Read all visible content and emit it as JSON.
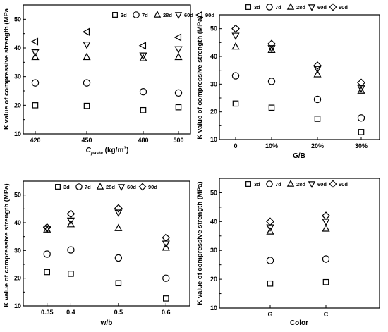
{
  "legend": {
    "entries": [
      "3d",
      "7d",
      "28d",
      "60d",
      "90d"
    ],
    "markers": [
      "square",
      "circle",
      "triangle-up",
      "triangle-down",
      "diamond-or-triangle-left"
    ]
  },
  "chart_data": [
    {
      "type": "scatter",
      "id": "paste",
      "ylabel": "K value of compressive strength (MPa",
      "xlabel_main": "C",
      "xlabel_sub": "paste",
      "xlabel_unit": " (kg/m",
      "xlabel_sup": "3",
      "xlabel_end": ")",
      "categories": [
        "420",
        "450",
        "480",
        "500"
      ],
      "ylim": [
        10,
        55
      ],
      "yticks": [
        "10",
        "20",
        "30",
        "40",
        "50"
      ],
      "series": [
        {
          "name": "3d",
          "marker": "square",
          "values": [
            20,
            19.8,
            18.3,
            19.3
          ]
        },
        {
          "name": "7d",
          "marker": "circle",
          "values": [
            27.8,
            27.8,
            24.7,
            24.3
          ]
        },
        {
          "name": "28d",
          "marker": "triangle-up",
          "values": [
            36.8,
            36.8,
            36.4,
            36.8
          ]
        },
        {
          "name": "60d",
          "marker": "triangle-down",
          "values": [
            38.5,
            41.2,
            37.4,
            39.6
          ]
        },
        {
          "name": "90d",
          "marker": "triangle-left",
          "values": [
            42.2,
            45.6,
            40.8,
            43.7
          ]
        }
      ]
    },
    {
      "type": "scatter",
      "id": "gb",
      "ylabel": "K value of compressive strength (MPa)",
      "xlabel": "G/B",
      "categories": [
        "0",
        "10%",
        "20%",
        "30%"
      ],
      "ylim": [
        10,
        55
      ],
      "yticks": [
        "10",
        "20",
        "30",
        "40",
        "50"
      ],
      "series": [
        {
          "name": "3d",
          "marker": "square",
          "values": [
            23,
            21.5,
            17.5,
            12.7
          ]
        },
        {
          "name": "7d",
          "marker": "circle",
          "values": [
            33,
            31,
            24.5,
            17.8
          ]
        },
        {
          "name": "28d",
          "marker": "triangle-up",
          "values": [
            43.5,
            42.3,
            33.5,
            27.6
          ]
        },
        {
          "name": "60d",
          "marker": "triangle-down",
          "values": [
            47.5,
            43,
            35.5,
            28.5
          ]
        },
        {
          "name": "90d",
          "marker": "diamond",
          "values": [
            50,
            44.5,
            36.7,
            30.5
          ]
        }
      ]
    },
    {
      "type": "scatter",
      "id": "wb",
      "ylabel": "K value of compressive strength (MPa)",
      "xlabel": "w/b",
      "categories": [
        "0.35",
        "0.4",
        "0.5",
        "0.6"
      ],
      "x": [
        0.35,
        0.4,
        0.5,
        0.6
      ],
      "xlim": [
        0.3,
        0.65
      ],
      "ylim": [
        10,
        55
      ],
      "yticks": [
        "10",
        "20",
        "30",
        "40",
        "50"
      ],
      "series": [
        {
          "name": "3d",
          "marker": "square",
          "values": [
            22.2,
            21.6,
            18.2,
            12.7
          ]
        },
        {
          "name": "7d",
          "marker": "circle",
          "values": [
            28.7,
            30.2,
            27.3,
            20
          ]
        },
        {
          "name": "28d",
          "marker": "triangle-up",
          "values": [
            37.5,
            39.4,
            38,
            31
          ]
        },
        {
          "name": "60d",
          "marker": "triangle-down",
          "values": [
            37.8,
            40.8,
            43.7,
            32.5
          ]
        },
        {
          "name": "90d",
          "marker": "diamond",
          "values": [
            38.3,
            43.2,
            45.2,
            34.6
          ]
        }
      ]
    },
    {
      "type": "scatter",
      "id": "color",
      "ylabel": "K value of compressive strength (MPa)",
      "xlabel": "Color",
      "categories": [
        "G",
        "C"
      ],
      "ylim": [
        10,
        55
      ],
      "yticks": [
        "10",
        "20",
        "30",
        "40",
        "50"
      ],
      "series": [
        {
          "name": "3d",
          "marker": "square",
          "values": [
            18.5,
            19
          ]
        },
        {
          "name": "7d",
          "marker": "circle",
          "values": [
            26.5,
            27
          ]
        },
        {
          "name": "28d",
          "marker": "triangle-up",
          "values": [
            36.5,
            37.5
          ]
        },
        {
          "name": "60d",
          "marker": "triangle-down",
          "values": [
            38,
            40
          ]
        },
        {
          "name": "90d",
          "marker": "diamond",
          "values": [
            40,
            42
          ]
        }
      ]
    }
  ]
}
